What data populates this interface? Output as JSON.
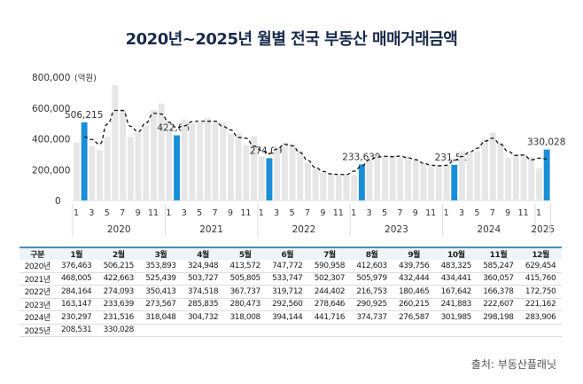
{
  "title": "2020년~2025년 월별 전국 부동산 매매거래금액",
  "source": "출처: 부동산플래닛",
  "chart_data": {
    "type": "bar",
    "ylabel_unit": "(억원)",
    "ylim": [
      0,
      800000
    ],
    "yticks": [
      "0",
      "200,000",
      "400,000",
      "600,000",
      "800,000"
    ],
    "years": [
      "2020",
      "2021",
      "2022",
      "2023",
      "2024",
      "2025"
    ],
    "month_ticks": [
      "1",
      "3",
      "5",
      "7",
      "9",
      "11"
    ],
    "highlight_month": 2,
    "highlight_labels": [
      "506,215",
      "422,663",
      "274,093",
      "233,639",
      "231,516",
      "330,028"
    ],
    "colors": {
      "bar": "#e6e6e6",
      "highlight": "#1a8fd9",
      "trend": "#111111"
    },
    "trend": "dashed line",
    "series": [
      {
        "year": "2020",
        "values": [
          376463,
          506215,
          353893,
          324948,
          413572,
          747772,
          590958,
          412603,
          439756,
          483325,
          585247,
          629454
        ]
      },
      {
        "year": "2021",
        "values": [
          468005,
          422663,
          525439,
          503727,
          505805,
          533747,
          502307,
          505979,
          432444,
          434441,
          360057,
          415760
        ]
      },
      {
        "year": "2022",
        "values": [
          284164,
          274093,
          350413,
          374518,
          367737,
          319712,
          244402,
          216753,
          180465,
          167642,
          166378,
          172750
        ]
      },
      {
        "year": "2023",
        "values": [
          163147,
          233639,
          273567,
          285835,
          280473,
          292560,
          278646,
          290925,
          260215,
          241883,
          222607,
          221162
        ]
      },
      {
        "year": "2024",
        "values": [
          230297,
          231516,
          318048,
          304732,
          318008,
          394144,
          441716,
          374737,
          276587,
          301985,
          298198,
          283906
        ]
      },
      {
        "year": "2025",
        "values": [
          208531,
          330028
        ]
      }
    ]
  },
  "table": {
    "headers": [
      "구분",
      "1월",
      "2월",
      "3월",
      "4월",
      "5월",
      "6월",
      "7월",
      "8월",
      "9월",
      "10월",
      "11월",
      "12월"
    ],
    "rows": [
      [
        "2020년",
        "376,463",
        "506,215",
        "353,893",
        "324,948",
        "413,572",
        "747,772",
        "590,958",
        "412,603",
        "439,756",
        "483,325",
        "585,247",
        "629,454"
      ],
      [
        "2021년",
        "468,005",
        "422,663",
        "525,439",
        "503,727",
        "505,805",
        "533,747",
        "502,307",
        "505,979",
        "432,444",
        "434,441",
        "360,057",
        "415,760"
      ],
      [
        "2022년",
        "284,164",
        "274,093",
        "350,413",
        "374,518",
        "367,737",
        "319,712",
        "244,402",
        "216,753",
        "180,465",
        "167,642",
        "166,378",
        "172,750"
      ],
      [
        "2023년",
        "163,147",
        "233,639",
        "273,567",
        "285,835",
        "280,473",
        "292,560",
        "278,646",
        "290,925",
        "260,215",
        "241,883",
        "222,607",
        "221,162"
      ],
      [
        "2024년",
        "230,297",
        "231,516",
        "318,048",
        "304,732",
        "318,008",
        "394,144",
        "441,716",
        "374,737",
        "276,587",
        "301,985",
        "298,198",
        "283,906"
      ],
      [
        "2025년",
        "208,531",
        "330,028",
        "",
        "",
        "",
        "",
        "",
        "",
        "",
        "",
        "",
        ""
      ]
    ]
  }
}
